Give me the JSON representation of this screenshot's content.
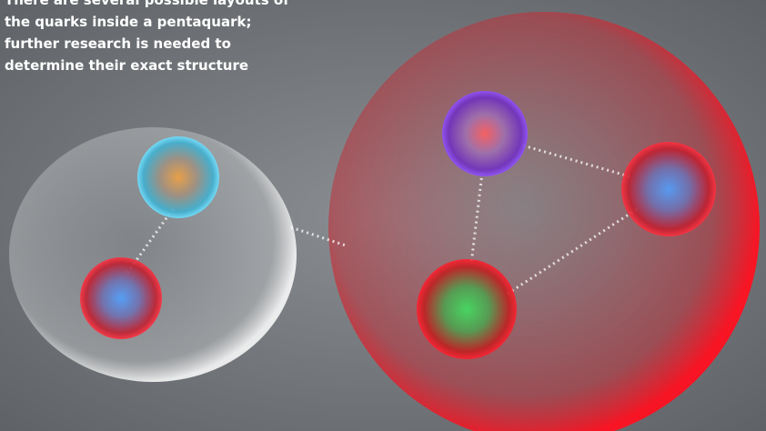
{
  "caption": {
    "lines": [
      "There are several possible layouts of",
      "the quarks inside a pentaquark;",
      "further research is needed to",
      "determine their exact structure"
    ]
  }
}
